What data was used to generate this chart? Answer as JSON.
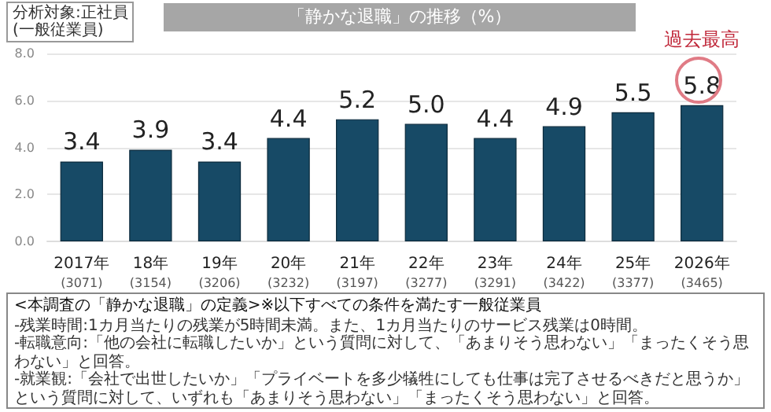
{
  "chart_data": {
    "type": "bar",
    "title": "「静かな退職」の推移（%）",
    "categories": [
      "2017年\n(3071)",
      "18年\n(3154)",
      "19年\n(3206)",
      "20年\n(3232)",
      "21年\n(3197)",
      "22年\n(3277)",
      "23年\n(3291)",
      "24年\n(3422)",
      "25年\n(3377)",
      "2026年\n(3465)"
    ],
    "values": [
      3.4,
      3.9,
      3.4,
      4.4,
      5.2,
      5.0,
      4.4,
      4.9,
      5.5,
      5.8
    ],
    "value_labels": [
      "3.4",
      "3.9",
      "3.4",
      "4.4",
      "5.2",
      "5.0",
      "4.4",
      "4.9",
      "5.5",
      "5.8"
    ],
    "color": "#174a66",
    "ylim": [
      0,
      8
    ],
    "yticks": [
      {
        "value": 0,
        "label": "0.0"
      },
      {
        "value": 2,
        "label": "2.0"
      },
      {
        "value": 4,
        "label": "4.0"
      },
      {
        "value": 6,
        "label": "6.0"
      },
      {
        "value": 8,
        "label": "8.0"
      }
    ],
    "grid": "y",
    "annotations": [
      "分析対象:正社員\n(一般従業員)",
      {
        "text": "過去最高",
        "x": "2026年\n(3465)",
        "y": 5.8
      },
      "<本調査の「静かな退職」の定義>※以下すべての条件を満たす一般従業員",
      "-残業時間:1カ月当たりの残業が5時間未満。また、1カ月当たりのサービス残業は0時間。",
      "-転職意向:「他の会社に転職したいか」という質問に対して、「あまりそう思わない」「まったくそう思わない」と回答。",
      "-就業観:「会社で出世したいか」「プライベートを多少犠牲にしても仕事は完了させるべきだと思うか」という質問に対して、いずれも「あまりそう思わない」「まったくそう思わない」と回答。"
    ]
  }
}
